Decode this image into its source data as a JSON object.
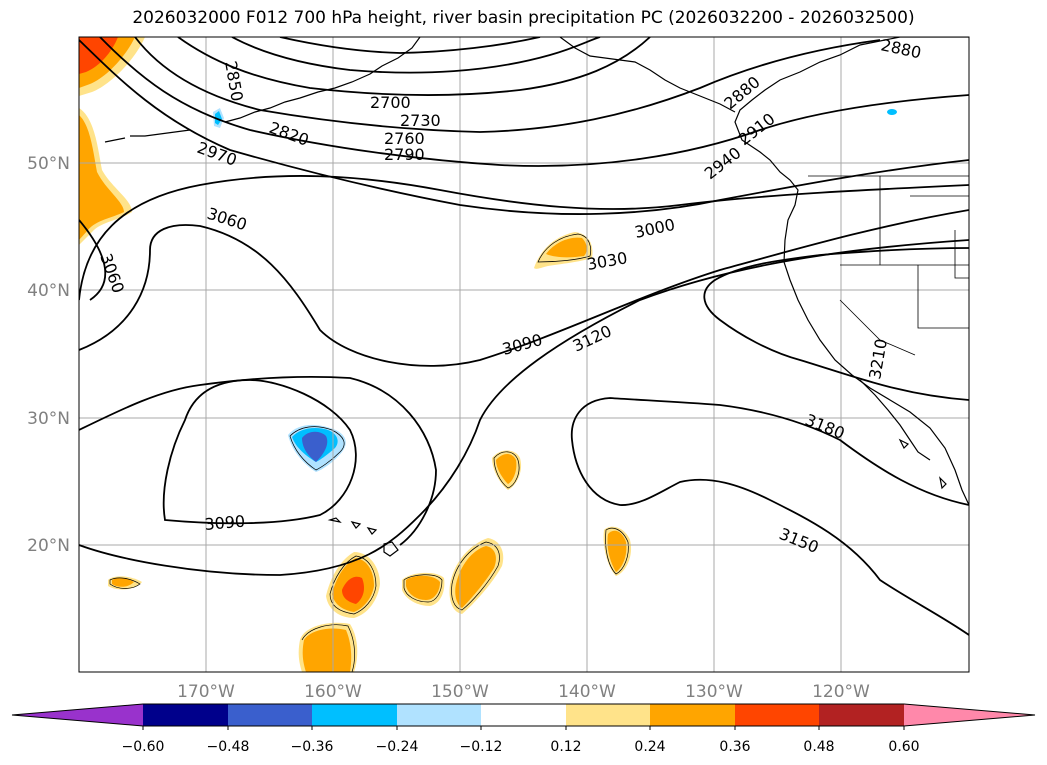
{
  "title": "2026032000 F012 700 hPa height, river basin precipitation PC (2026032200 - 2026032500)",
  "map": {
    "lon_ticks": [
      "170°W",
      "160°W",
      "150°W",
      "140°W",
      "130°W",
      "120°W"
    ],
    "lat_ticks": [
      "50°N",
      "40°N",
      "30°N",
      "20°N"
    ],
    "grid": true
  },
  "contours": {
    "line_color": "#000000",
    "labels": [
      "2850",
      "2700",
      "2730",
      "2760",
      "2790",
      "2820",
      "2970",
      "3060",
      "3060",
      "3000",
      "3030",
      "3090",
      "3120",
      "3090",
      "3210",
      "3180",
      "3150",
      "2880",
      "2880",
      "2910",
      "2940"
    ]
  },
  "colorbar": {
    "ticks": [
      "−0.60",
      "−0.48",
      "−0.36",
      "−0.24",
      "−0.12",
      "0.12",
      "0.24",
      "0.36",
      "0.48",
      "0.60"
    ],
    "colors": [
      "#9932cc",
      "#00008b",
      "#3a5fcd",
      "#00bfff",
      "#b0e2ff",
      "#ffffff",
      "#ffe38a",
      "#ffa500",
      "#ff4500",
      "#b22222",
      "#ff88aa"
    ],
    "extend": "both"
  }
}
